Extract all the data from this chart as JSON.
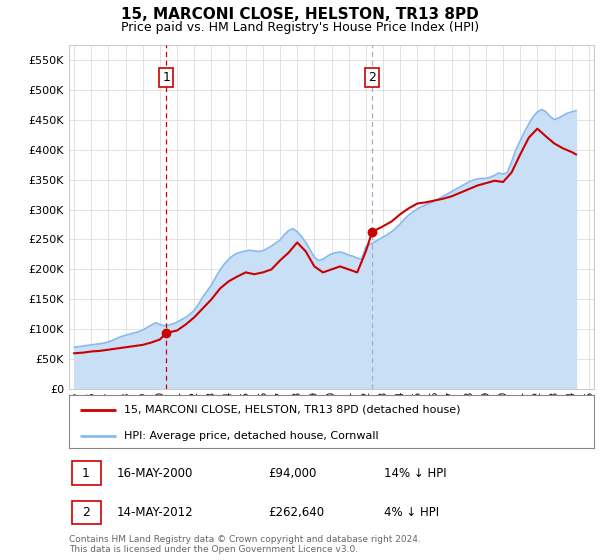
{
  "title": "15, MARCONI CLOSE, HELSTON, TR13 8PD",
  "subtitle": "Price paid vs. HM Land Registry's House Price Index (HPI)",
  "legend_line1": "15, MARCONI CLOSE, HELSTON, TR13 8PD (detached house)",
  "legend_line2": "HPI: Average price, detached house, Cornwall",
  "table_rows": [
    {
      "num": "1",
      "date": "16-MAY-2000",
      "price": "£94,000",
      "hpi": "14% ↓ HPI"
    },
    {
      "num": "2",
      "date": "14-MAY-2012",
      "price": "£262,640",
      "hpi": "4% ↓ HPI"
    }
  ],
  "footnote": "Contains HM Land Registry data © Crown copyright and database right 2024.\nThis data is licensed under the Open Government Licence v3.0.",
  "sale1_year": 2000.37,
  "sale1_price": 94000,
  "sale2_year": 2012.37,
  "sale2_price": 262640,
  "vline1_year": 2000.37,
  "vline2_year": 2012.37,
  "vline1_color": "#cc0000",
  "vline2_color": "#aaaacc",
  "hpi_color": "#88bbee",
  "hpi_fill_color": "#c8dff5",
  "price_color": "#cc0000",
  "bg_color": "#ffffff",
  "grid_color": "#dddddd",
  "label_box_color": "#cc0000",
  "ylim_max": 575000,
  "xlim_start": 1994.7,
  "xlim_end": 2025.3,
  "hpi_data_years": [
    1995.0,
    1995.25,
    1995.5,
    1995.75,
    1996.0,
    1996.25,
    1996.5,
    1996.75,
    1997.0,
    1997.25,
    1997.5,
    1997.75,
    1998.0,
    1998.25,
    1998.5,
    1998.75,
    1999.0,
    1999.25,
    1999.5,
    1999.75,
    2000.0,
    2000.25,
    2000.5,
    2000.75,
    2001.0,
    2001.25,
    2001.5,
    2001.75,
    2002.0,
    2002.25,
    2002.5,
    2002.75,
    2003.0,
    2003.25,
    2003.5,
    2003.75,
    2004.0,
    2004.25,
    2004.5,
    2004.75,
    2005.0,
    2005.25,
    2005.5,
    2005.75,
    2006.0,
    2006.25,
    2006.5,
    2006.75,
    2007.0,
    2007.25,
    2007.5,
    2007.75,
    2008.0,
    2008.25,
    2008.5,
    2008.75,
    2009.0,
    2009.25,
    2009.5,
    2009.75,
    2010.0,
    2010.25,
    2010.5,
    2010.75,
    2011.0,
    2011.25,
    2011.5,
    2011.75,
    2012.0,
    2012.25,
    2012.5,
    2012.75,
    2013.0,
    2013.25,
    2013.5,
    2013.75,
    2014.0,
    2014.25,
    2014.5,
    2014.75,
    2015.0,
    2015.25,
    2015.5,
    2015.75,
    2016.0,
    2016.25,
    2016.5,
    2016.75,
    2017.0,
    2017.25,
    2017.5,
    2017.75,
    2018.0,
    2018.25,
    2018.5,
    2018.75,
    2019.0,
    2019.25,
    2019.5,
    2019.75,
    2020.0,
    2020.25,
    2020.5,
    2020.75,
    2021.0,
    2021.25,
    2021.5,
    2021.75,
    2022.0,
    2022.25,
    2022.5,
    2022.75,
    2023.0,
    2023.25,
    2023.5,
    2023.75,
    2024.0,
    2024.25
  ],
  "hpi_data_values": [
    70000,
    71000,
    72000,
    73000,
    74000,
    75000,
    76000,
    77000,
    79000,
    82000,
    85000,
    88000,
    90000,
    92000,
    94000,
    96000,
    99000,
    103000,
    107000,
    111000,
    108000,
    106000,
    107000,
    109000,
    112000,
    116000,
    120000,
    125000,
    132000,
    142000,
    154000,
    164000,
    174000,
    187000,
    199000,
    209000,
    217000,
    223000,
    227000,
    229000,
    231000,
    232000,
    231000,
    230000,
    231000,
    235000,
    239000,
    244000,
    249000,
    258000,
    265000,
    268000,
    263000,
    255000,
    245000,
    233000,
    220000,
    215000,
    217000,
    222000,
    226000,
    228000,
    229000,
    227000,
    224000,
    222000,
    219000,
    217000,
    238000,
    242000,
    246000,
    250000,
    254000,
    258000,
    263000,
    269000,
    276000,
    284000,
    291000,
    296000,
    301000,
    305000,
    308000,
    311000,
    314000,
    318000,
    322000,
    326000,
    330000,
    334000,
    338000,
    342000,
    346000,
    349000,
    351000,
    352000,
    352000,
    354000,
    357000,
    361000,
    359000,
    362000,
    380000,
    400000,
    415000,
    430000,
    443000,
    455000,
    463000,
    467000,
    463000,
    455000,
    450000,
    453000,
    457000,
    461000,
    463000,
    465000
  ],
  "price_data_years": [
    1995.0,
    1995.5,
    1996.0,
    1996.5,
    1997.0,
    1997.5,
    1998.0,
    1998.5,
    1999.0,
    1999.5,
    2000.0,
    2000.37,
    2001.0,
    2001.5,
    2002.0,
    2002.5,
    2003.0,
    2003.5,
    2004.0,
    2004.5,
    2005.0,
    2005.5,
    2006.0,
    2006.5,
    2007.0,
    2007.5,
    2008.0,
    2008.5,
    2009.0,
    2009.5,
    2010.0,
    2010.5,
    2011.0,
    2011.5,
    2012.0,
    2012.37,
    2013.0,
    2013.5,
    2014.0,
    2014.5,
    2015.0,
    2015.5,
    2016.0,
    2016.5,
    2017.0,
    2017.5,
    2018.0,
    2018.5,
    2019.0,
    2019.5,
    2020.0,
    2020.5,
    2021.0,
    2021.5,
    2022.0,
    2022.5,
    2023.0,
    2023.5,
    2024.0,
    2024.25
  ],
  "price_data_values": [
    60000,
    61000,
    63000,
    64000,
    66000,
    68000,
    70000,
    72000,
    74000,
    78000,
    83000,
    94000,
    98000,
    108000,
    120000,
    135000,
    150000,
    168000,
    180000,
    188000,
    195000,
    192000,
    195000,
    200000,
    215000,
    228000,
    245000,
    230000,
    205000,
    195000,
    200000,
    205000,
    200000,
    195000,
    230000,
    262640,
    272000,
    280000,
    292000,
    302000,
    310000,
    312000,
    315000,
    318000,
    322000,
    328000,
    334000,
    340000,
    344000,
    348000,
    346000,
    362000,
    392000,
    420000,
    435000,
    422000,
    410000,
    402000,
    396000,
    392000
  ]
}
